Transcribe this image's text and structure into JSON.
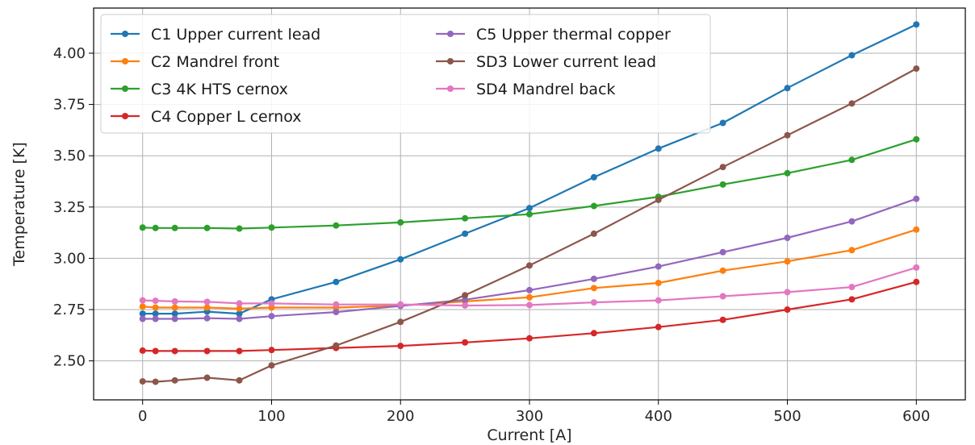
{
  "chart_data": {
    "type": "line",
    "xlabel": "Current [A]",
    "ylabel": "Temperature [K]",
    "xlim": [
      -38,
      638
    ],
    "ylim": [
      2.31,
      4.22
    ],
    "xticks": [
      0,
      100,
      200,
      300,
      400,
      500,
      600
    ],
    "xtick_labels": [
      "0",
      "100",
      "200",
      "300",
      "400",
      "500",
      "600"
    ],
    "yticks": [
      2.5,
      2.75,
      3.0,
      3.25,
      3.5,
      3.75,
      4.0
    ],
    "ytick_labels": [
      "2.50",
      "2.75",
      "3.00",
      "3.25",
      "3.50",
      "3.75",
      "4.00"
    ],
    "grid": true,
    "legend_position": "top-left",
    "x": [
      0,
      10,
      25,
      50,
      75,
      100,
      150,
      200,
      250,
      300,
      350,
      400,
      450,
      500,
      550,
      600
    ],
    "series": [
      {
        "name": "C1 Upper current lead",
        "color": "#1f77b4",
        "values": [
          2.73,
          2.73,
          2.73,
          2.74,
          2.73,
          2.8,
          2.885,
          2.995,
          3.12,
          3.245,
          3.395,
          3.535,
          3.66,
          3.83,
          3.99,
          4.14
        ]
      },
      {
        "name": "C2 Mandrel front",
        "color": "#ff7f0e",
        "values": [
          2.765,
          2.76,
          2.76,
          2.76,
          2.755,
          2.76,
          2.76,
          2.77,
          2.79,
          2.81,
          2.855,
          2.88,
          2.94,
          2.985,
          3.04,
          3.14
        ]
      },
      {
        "name": "C3 4K HTS cernox",
        "color": "#2ca02c",
        "values": [
          3.15,
          3.148,
          3.148,
          3.148,
          3.145,
          3.15,
          3.16,
          3.175,
          3.195,
          3.215,
          3.255,
          3.3,
          3.36,
          3.415,
          3.48,
          3.58
        ]
      },
      {
        "name": "C4 Copper L cernox",
        "color": "#d62728",
        "values": [
          2.55,
          2.548,
          2.548,
          2.548,
          2.548,
          2.553,
          2.563,
          2.573,
          2.59,
          2.61,
          2.635,
          2.665,
          2.7,
          2.75,
          2.8,
          2.885
        ]
      },
      {
        "name": "C5 Upper thermal copper",
        "color": "#9467bd",
        "values": [
          2.705,
          2.705,
          2.705,
          2.708,
          2.705,
          2.718,
          2.738,
          2.768,
          2.798,
          2.845,
          2.9,
          2.96,
          3.03,
          3.1,
          3.18,
          3.29
        ]
      },
      {
        "name": "SD3 Lower current lead",
        "color": "#8c564b",
        "values": [
          2.4,
          2.398,
          2.405,
          2.418,
          2.405,
          2.478,
          2.575,
          2.69,
          2.82,
          2.965,
          3.12,
          3.285,
          3.445,
          3.6,
          3.755,
          3.925
        ]
      },
      {
        "name": "SD4 Mandrel back",
        "color": "#e377c2",
        "values": [
          2.795,
          2.793,
          2.79,
          2.788,
          2.78,
          2.78,
          2.775,
          2.775,
          2.77,
          2.772,
          2.785,
          2.795,
          2.815,
          2.835,
          2.86,
          2.955
        ]
      }
    ]
  }
}
